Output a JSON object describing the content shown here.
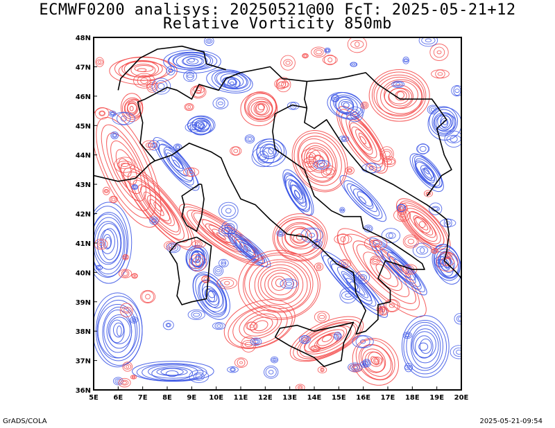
{
  "title": {
    "line1": "ECMWF0200 analisys: 20250521@00 FcT: 2025-05-21+12",
    "line2": "Relative Vorticity 850mb"
  },
  "map": {
    "lon_range": [
      5,
      20
    ],
    "lat_range": [
      36,
      48
    ],
    "lon_ticks": [
      "5E",
      "6E",
      "7E",
      "8E",
      "9E",
      "10E",
      "11E",
      "12E",
      "13E",
      "14E",
      "15E",
      "16E",
      "17E",
      "18E",
      "19E",
      "20E"
    ],
    "lat_ticks": [
      "36N",
      "37N",
      "38N",
      "39N",
      "40N",
      "41N",
      "42N",
      "43N",
      "44N",
      "45N",
      "46N",
      "47N",
      "48N"
    ],
    "colors": {
      "positive": "#f44a4a",
      "negative": "#3c56e6",
      "coast": "#000000",
      "frame": "#000000"
    }
  },
  "footer": {
    "left": "GrADS/COLA",
    "right": "2025-05-21-09:54"
  }
}
